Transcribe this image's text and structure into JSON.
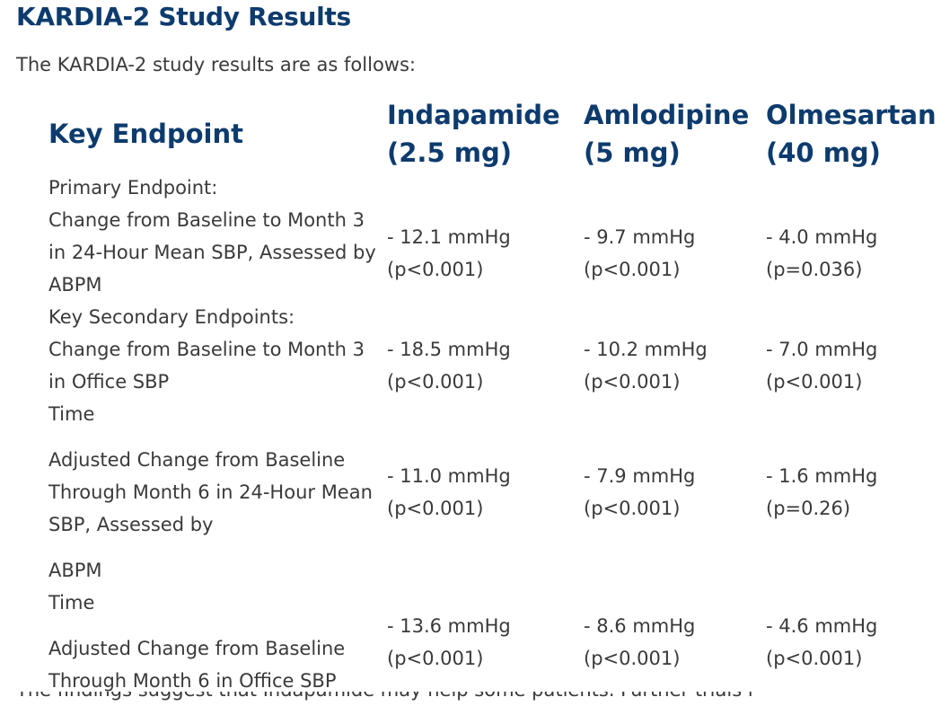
{
  "page": {
    "title": "KARDIA-2 Study Results",
    "intro": "The KARDIA-2 study results are as follows:"
  },
  "table": {
    "headers": {
      "endpoint": "Key Endpoint",
      "indapamide": [
        "Indapamide",
        "(2.5 mg)"
      ],
      "amlodipine": [
        "Amlodipine",
        "(5 mg)"
      ],
      "olmesartan": [
        "Olmesartan",
        "(40 mg)"
      ]
    },
    "primary_label": "Primary Endpoint:",
    "secondary_label": "Key Secondary Endpoints:",
    "rows": [
      {
        "endpoint": [
          "Change from Baseline to Month 3",
          "in 24-Hour Mean SBP, Assessed by",
          "ABPM"
        ],
        "indapamide": [
          "- 12.1 mmHg",
          "(p<0.001)"
        ],
        "amlodipine": [
          "- 9.7 mmHg",
          "(p<0.001)"
        ],
        "olmesartan": [
          "- 4.0 mmHg",
          "(p=0.036)"
        ]
      },
      {
        "endpoint": [
          "Change from Baseline to Month 3",
          "in Office SBP",
          "Time"
        ],
        "indapamide": [
          "- 18.5 mmHg",
          "(p<0.001)"
        ],
        "amlodipine": [
          "- 10.2 mmHg",
          "(p<0.001)"
        ],
        "olmesartan": [
          "- 7.0 mmHg",
          "(p<0.001)"
        ]
      },
      {
        "endpoint": [
          "Adjusted Change from Baseline",
          "Through Month 6 in 24-Hour Mean",
          "SBP, Assessed by",
          "ABPM",
          "Time"
        ],
        "indapamide": [
          "- 11.0 mmHg",
          "(p<0.001)"
        ],
        "amlodipine": [
          "- 7.9 mmHg",
          "(p<0.001)"
        ],
        "olmesartan": [
          "- 1.6 mmHg",
          "(p=0.26)"
        ]
      },
      {
        "endpoint": [
          "Adjusted Change from Baseline",
          "Through Month 6 in Office SBP"
        ],
        "indapamide": [
          "- 13.6 mmHg",
          "(p<0.001)"
        ],
        "amlodipine": [
          "- 8.6 mmHg",
          "(p<0.001)"
        ],
        "olmesartan": [
          "- 4.6 mmHg",
          "(p<0.001)"
        ]
      }
    ]
  },
  "footer_cutoff": "The findings suggest that Indapamide may help some patients. Further trials needed."
}
